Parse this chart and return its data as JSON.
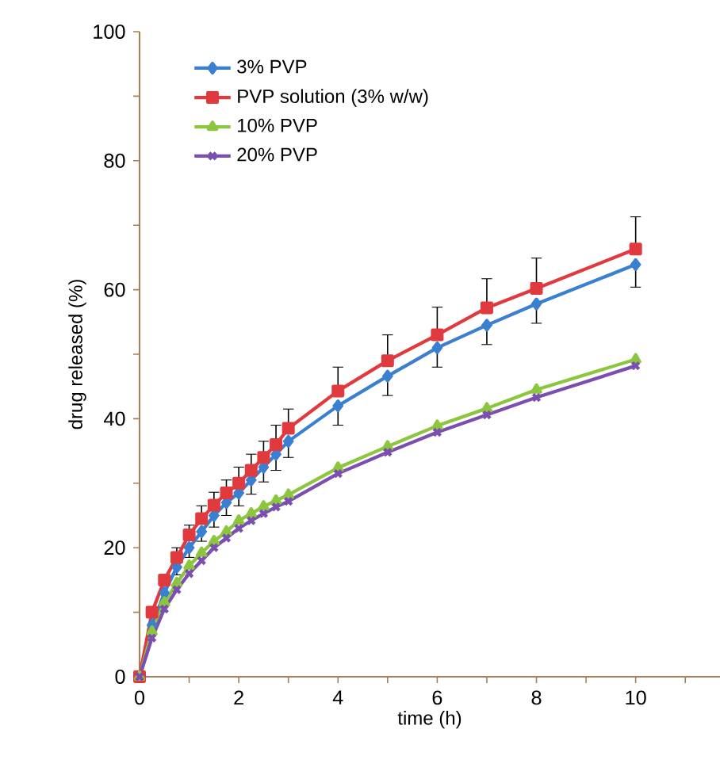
{
  "chart_data": {
    "type": "line",
    "xlabel": "time (h)",
    "ylabel": "drug released (%)",
    "x": [
      0,
      0.25,
      0.5,
      0.75,
      1,
      1.25,
      1.5,
      1.75,
      2,
      2.25,
      2.5,
      2.75,
      3,
      4,
      5,
      6,
      7,
      8,
      10
    ],
    "xlim": [
      0,
      11.7
    ],
    "ylim": [
      0,
      100
    ],
    "xticks": [
      0,
      {
        "value": 1,
        "label": null
      },
      2,
      {
        "value": 3,
        "label": null
      },
      4,
      {
        "value": 5,
        "label": null
      },
      6,
      {
        "value": 7,
        "label": null
      },
      8,
      {
        "value": 9,
        "label": null
      },
      10,
      {
        "value": 11,
        "label": null
      }
    ],
    "yticks": [
      0,
      {
        "value": 10,
        "label": null
      },
      20,
      {
        "value": 30,
        "label": null
      },
      40,
      {
        "value": 50,
        "label": null
      },
      60,
      {
        "value": 70,
        "label": null
      },
      80,
      {
        "value": 90,
        "label": null
      },
      100
    ],
    "grid": false,
    "legend": "top left",
    "line_style": "solid",
    "series": [
      {
        "name": "3% PVP",
        "color": "#3b7fd0",
        "marker": "diamond",
        "values": [
          0,
          8,
          13,
          17,
          20,
          22.5,
          25,
          27,
          28.5,
          30.5,
          32.5,
          34.5,
          36.5,
          42,
          46.6,
          51,
          54.5,
          57.8,
          63.9
        ],
        "errors": [
          null,
          null,
          null,
          [
            15.8,
            17
          ],
          [
            18.5,
            20
          ],
          [
            21,
            22.5
          ],
          [
            23.2,
            25
          ],
          [
            25,
            27
          ],
          [
            26.5,
            28.5
          ],
          [
            28.3,
            30.5
          ],
          [
            30.2,
            32.5
          ],
          [
            32,
            34.5
          ],
          [
            34,
            36.5
          ],
          [
            39,
            42
          ],
          [
            43.6,
            46.6
          ],
          [
            48,
            51
          ],
          [
            51.5,
            54.5
          ],
          [
            54.8,
            57.8
          ],
          [
            60.4,
            63.9
          ]
        ]
      },
      {
        "name": "PVP solution (3% w/w)",
        "color": "#e0393e",
        "marker": "square",
        "values": [
          0,
          10,
          15,
          18.5,
          22,
          24.5,
          26.6,
          28.5,
          30,
          32,
          34,
          36,
          38.5,
          44.3,
          49,
          53,
          57.2,
          60.2,
          66.3
        ],
        "errors": [
          null,
          null,
          null,
          [
            18.5,
            20
          ],
          [
            22,
            23.5
          ],
          [
            24.5,
            26.5
          ],
          [
            26.6,
            28.6
          ],
          [
            28.5,
            30.5
          ],
          [
            30,
            32.5
          ],
          [
            32,
            34.5
          ],
          [
            34,
            36.5
          ],
          [
            36,
            39
          ],
          [
            38.5,
            41.5
          ],
          [
            44.3,
            48
          ],
          [
            49,
            53
          ],
          [
            53,
            57.3
          ],
          [
            57.2,
            61.7
          ],
          [
            60.2,
            64.9
          ],
          [
            66.3,
            71.3
          ]
        ]
      },
      {
        "name": "10% PVP",
        "color": "#8cc63f",
        "marker": "triangle",
        "values": [
          0,
          7,
          11.5,
          14.5,
          17.2,
          19.2,
          21,
          22.5,
          24.2,
          25.3,
          26.4,
          27.3,
          28.2,
          32.4,
          35.7,
          38.9,
          41.6,
          44.5,
          49.2
        ]
      },
      {
        "name": "20% PVP",
        "color": "#7b4fb0",
        "marker": "cross",
        "values": [
          0,
          6,
          10.5,
          13.5,
          16,
          18,
          20,
          21.5,
          23,
          24.2,
          25.3,
          26.3,
          27.2,
          31.5,
          34.8,
          37.9,
          40.6,
          43.3,
          48.2
        ]
      }
    ]
  }
}
